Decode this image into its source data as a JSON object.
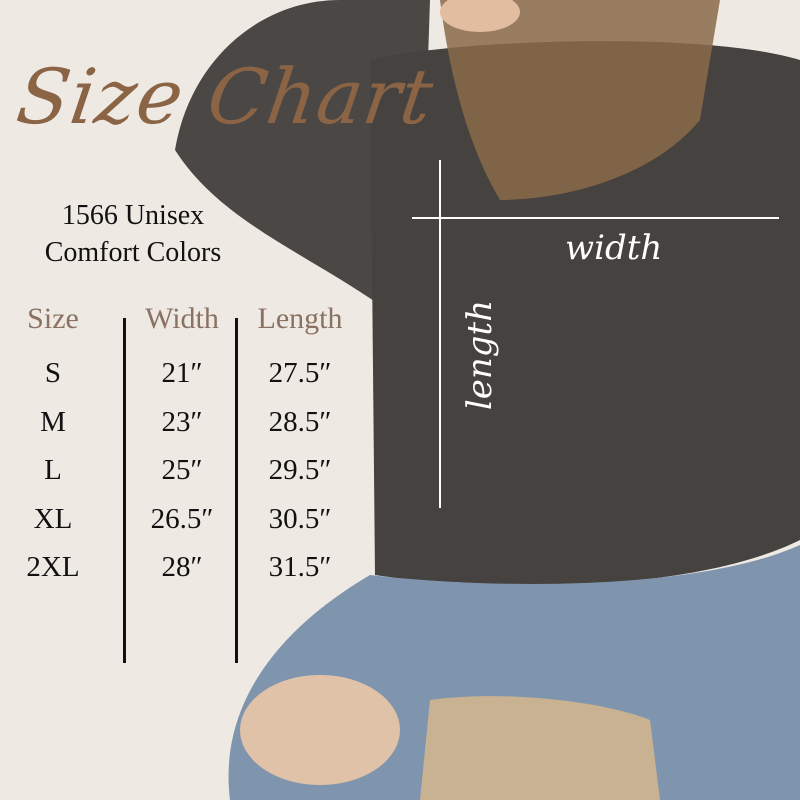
{
  "title": "Size Chart",
  "subtitle": [
    "1566 Unisex",
    "Comfort Colors"
  ],
  "table": {
    "headers": [
      "Size",
      "Width",
      "Length"
    ],
    "rows": [
      [
        "S",
        "21″",
        "27.5″"
      ],
      [
        "M",
        "23″",
        "28.5″"
      ],
      [
        "L",
        "25″",
        "29.5″"
      ],
      [
        "XL",
        "26.5″",
        "30.5″"
      ],
      [
        "2XL",
        "28″",
        "31.5″"
      ]
    ]
  },
  "annotations": {
    "width": "width",
    "length": "length"
  },
  "colors": {
    "background": "#efe9e4",
    "title": "#8b6446",
    "header": "#8a7262",
    "sweatshirt": "#45423f",
    "jeans": "#7f95ad"
  }
}
